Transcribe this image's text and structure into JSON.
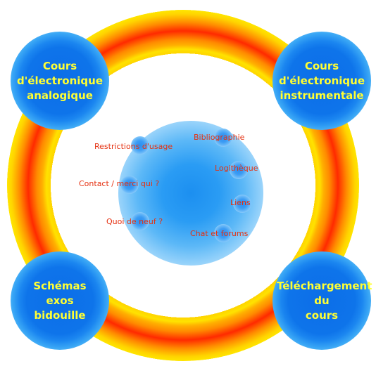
{
  "corners": {
    "top_left": "Cours\nd'électronique\nanalogique",
    "top_right": "Cours\nd'électronique\ninstrumentale",
    "bottom_left": "Schémas\nexos\nbidouille",
    "bottom_right": "Téléchargement\ndu\ncours"
  },
  "links": {
    "bibliographie": "Bibliographie",
    "logitheque": "Logithèque",
    "liens": "Liens",
    "chat": "Chat et forums",
    "restrictions": "Restrictions d'usage",
    "contact": "Contact / merci qui ?",
    "quoi_de_neuf": "Quoi de neuf ?"
  },
  "colors": {
    "corner_text": "#ffff33",
    "link_text": "#e53010",
    "ring_outer": "#ffd400",
    "ring_inner": "#ff2a00",
    "circle_blue": "#0c6ee8"
  }
}
